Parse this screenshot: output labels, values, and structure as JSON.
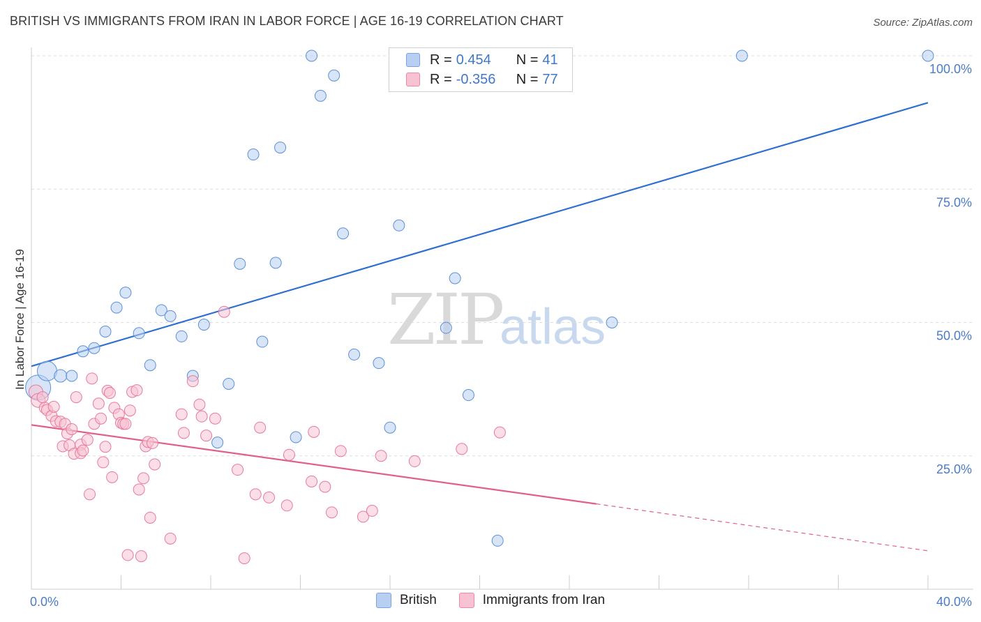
{
  "header": {
    "title": "BRITISH VS IMMIGRANTS FROM IRAN IN LABOR FORCE | AGE 16-19 CORRELATION CHART",
    "source": "Source: ZipAtlas.com"
  },
  "watermark": {
    "zip": "ZIP",
    "atlas": "atlas"
  },
  "legend": {
    "rows": [
      {
        "r_label": "R =",
        "r_value": "0.454",
        "n_label": "N =",
        "n_value": "41",
        "color": "#b8cff2",
        "border": "#7aa3e0"
      },
      {
        "r_label": "R =",
        "r_value": "-0.356",
        "n_label": "N =",
        "n_value": "77",
        "color": "#f8c2d3",
        "border": "#e68aa8"
      }
    ]
  },
  "bottom_legend": [
    {
      "label": "British",
      "color": "#b8cff2",
      "border": "#7aa3e0"
    },
    {
      "label": "Immigrants from Iran",
      "color": "#f8c2d3",
      "border": "#e68aa8"
    }
  ],
  "chart_data": {
    "type": "scatter",
    "ylabel": "In Labor Force | Age 16-19",
    "xlim": [
      0,
      40
    ],
    "ylim": [
      0,
      100
    ],
    "x_tick_labels": [
      "0.0%",
      "40.0%"
    ],
    "y_ticks": [
      25,
      50,
      75,
      100
    ],
    "y_tick_labels": [
      "25.0%",
      "50.0%",
      "75.0%",
      "100.0%"
    ],
    "grid": true,
    "legend_placement": "top-center",
    "series": [
      {
        "name": "British",
        "color": "#5b8fd8",
        "fill": "#b8cff2",
        "trend": {
          "x": [
            0,
            40
          ],
          "y": [
            41.8,
            91.2
          ],
          "dashed_from": null,
          "color": "#2e6fcf"
        },
        "points": [
          [
            0.3,
            37.8,
            18
          ],
          [
            0.7,
            40.9,
            14
          ],
          [
            1.3,
            40.0,
            9
          ],
          [
            1.8,
            40.0,
            8
          ],
          [
            2.3,
            44.6,
            8
          ],
          [
            2.8,
            45.2,
            8
          ],
          [
            3.3,
            48.3,
            8
          ],
          [
            3.8,
            52.8,
            8
          ],
          [
            4.2,
            55.6,
            8
          ],
          [
            4.8,
            48.0,
            8
          ],
          [
            5.3,
            42.0,
            8
          ],
          [
            5.8,
            52.3,
            8
          ],
          [
            6.2,
            51.2,
            8
          ],
          [
            6.7,
            47.4,
            8
          ],
          [
            7.2,
            40.0,
            8
          ],
          [
            7.7,
            49.6,
            8
          ],
          [
            8.3,
            27.5,
            8
          ],
          [
            8.8,
            38.5,
            8
          ],
          [
            9.3,
            61.0,
            8
          ],
          [
            9.9,
            81.5,
            8
          ],
          [
            10.3,
            46.4,
            8
          ],
          [
            10.9,
            61.2,
            8
          ],
          [
            11.1,
            82.8,
            8
          ],
          [
            11.8,
            28.5,
            8
          ],
          [
            12.5,
            100.0,
            8
          ],
          [
            12.9,
            92.5,
            8
          ],
          [
            13.5,
            96.3,
            8
          ],
          [
            13.9,
            66.7,
            8
          ],
          [
            14.4,
            44.0,
            8
          ],
          [
            15.5,
            42.4,
            8
          ],
          [
            16.0,
            30.3,
            8
          ],
          [
            16.4,
            68.2,
            8
          ],
          [
            18.5,
            49.0,
            8
          ],
          [
            18.9,
            58.3,
            8
          ],
          [
            19.5,
            36.4,
            8
          ],
          [
            20.8,
            9.1,
            8
          ],
          [
            25.9,
            50.0,
            8
          ],
          [
            31.7,
            100.0,
            8
          ],
          [
            40.0,
            100.0,
            8
          ]
        ]
      },
      {
        "name": "Immigrants from Iran",
        "color": "#e8799c",
        "fill": "#f8c2d3",
        "trend": {
          "x": [
            0,
            25.2,
            40
          ],
          "y": [
            30.8,
            16.0,
            7.2
          ],
          "dashed_from": 25.2,
          "color": "#e0608a"
        },
        "points": [
          [
            0.2,
            37.0,
            10
          ],
          [
            0.3,
            35.4,
            10
          ],
          [
            0.5,
            36.0,
            8
          ],
          [
            0.6,
            34.0,
            8
          ],
          [
            0.7,
            33.6,
            8
          ],
          [
            0.9,
            32.5,
            8
          ],
          [
            1.0,
            34.2,
            8
          ],
          [
            1.1,
            31.5,
            8
          ],
          [
            1.3,
            31.4,
            8
          ],
          [
            1.4,
            26.8,
            8
          ],
          [
            1.5,
            31.0,
            8
          ],
          [
            1.6,
            29.2,
            8
          ],
          [
            1.7,
            27.0,
            8
          ],
          [
            1.8,
            30.0,
            8
          ],
          [
            1.9,
            25.4,
            8
          ],
          [
            2.0,
            36.0,
            8
          ],
          [
            2.2,
            27.1,
            8
          ],
          [
            2.2,
            25.5,
            8
          ],
          [
            2.3,
            26.0,
            8
          ],
          [
            2.5,
            28.0,
            8
          ],
          [
            2.6,
            17.8,
            8
          ],
          [
            2.7,
            39.5,
            8
          ],
          [
            2.8,
            31.0,
            8
          ],
          [
            3.0,
            34.8,
            8
          ],
          [
            3.1,
            32.0,
            8
          ],
          [
            3.2,
            23.8,
            8
          ],
          [
            3.3,
            26.7,
            8
          ],
          [
            3.4,
            37.2,
            8
          ],
          [
            3.5,
            36.8,
            8
          ],
          [
            3.6,
            21.0,
            8
          ],
          [
            3.7,
            34.0,
            8
          ],
          [
            3.9,
            32.8,
            8
          ],
          [
            4.0,
            31.2,
            8
          ],
          [
            4.1,
            31.0,
            8
          ],
          [
            4.2,
            31.0,
            8
          ],
          [
            4.3,
            6.4,
            8
          ],
          [
            4.4,
            33.5,
            8
          ],
          [
            4.5,
            37.0,
            8
          ],
          [
            4.7,
            37.3,
            8
          ],
          [
            4.8,
            18.7,
            8
          ],
          [
            4.9,
            6.2,
            8
          ],
          [
            5.0,
            20.8,
            8
          ],
          [
            5.1,
            26.8,
            8
          ],
          [
            5.2,
            27.6,
            8
          ],
          [
            5.3,
            13.4,
            8
          ],
          [
            5.4,
            27.4,
            8
          ],
          [
            5.5,
            23.4,
            8
          ],
          [
            6.2,
            9.5,
            8
          ],
          [
            6.7,
            32.8,
            8
          ],
          [
            6.8,
            29.3,
            8
          ],
          [
            7.2,
            39.0,
            8
          ],
          [
            7.5,
            34.6,
            8
          ],
          [
            7.6,
            32.4,
            8
          ],
          [
            7.8,
            28.8,
            8
          ],
          [
            8.2,
            32.0,
            8
          ],
          [
            8.6,
            52.0,
            8
          ],
          [
            9.2,
            22.4,
            8
          ],
          [
            9.5,
            5.8,
            8
          ],
          [
            10.0,
            17.8,
            8
          ],
          [
            10.2,
            30.3,
            8
          ],
          [
            10.6,
            17.2,
            8
          ],
          [
            11.4,
            15.7,
            8
          ],
          [
            11.5,
            25.2,
            8
          ],
          [
            12.5,
            20.2,
            8
          ],
          [
            12.6,
            29.5,
            8
          ],
          [
            13.1,
            19.2,
            8
          ],
          [
            13.4,
            14.4,
            8
          ],
          [
            13.8,
            25.9,
            8
          ],
          [
            14.8,
            13.6,
            8
          ],
          [
            15.2,
            14.7,
            8
          ],
          [
            15.6,
            25.0,
            8
          ],
          [
            17.1,
            24.0,
            8
          ],
          [
            19.2,
            26.3,
            8
          ],
          [
            20.9,
            29.4,
            8
          ]
        ]
      }
    ]
  }
}
